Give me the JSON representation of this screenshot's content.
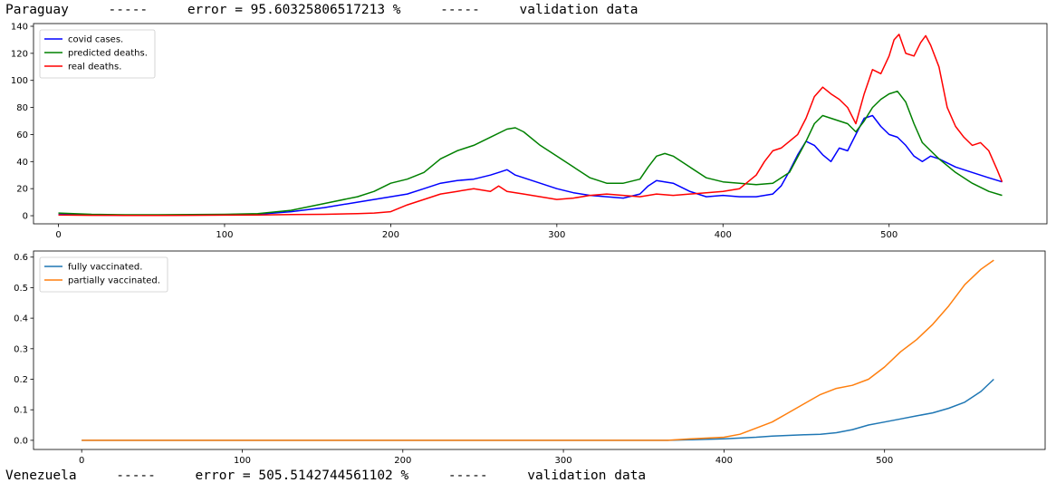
{
  "header": {
    "country": "Paraguay",
    "sep1": "-----",
    "error_text": "error = 95.60325806517213 %",
    "sep2": "-----",
    "dataset": "validation data"
  },
  "footer_header": {
    "country": "Venezuela",
    "sep1": "-----",
    "error_text": "error = 505.5142744561102 %",
    "sep2": "-----",
    "dataset": "validation data"
  },
  "colors": {
    "cases": "#0000ff",
    "predicted": "#008000",
    "real": "#ff0000",
    "fully": "#1f77b4",
    "partially": "#ff7f0e"
  },
  "chart_data": [
    {
      "type": "line",
      "title": "",
      "xlabel": "",
      "ylabel": "",
      "xlim": [
        -15,
        595
      ],
      "ylim": [
        -6,
        142
      ],
      "xticks": [
        0,
        100,
        200,
        300,
        400,
        500
      ],
      "yticks": [
        0,
        20,
        40,
        60,
        80,
        100,
        120,
        140
      ],
      "legend": "top-left",
      "grid": false,
      "series": [
        {
          "name": "covid cases.",
          "color": "#0000ff",
          "x": [
            0,
            20,
            40,
            60,
            80,
            100,
            120,
            140,
            160,
            180,
            190,
            200,
            210,
            220,
            230,
            240,
            250,
            260,
            265,
            270,
            275,
            280,
            290,
            300,
            310,
            320,
            330,
            340,
            350,
            355,
            360,
            365,
            370,
            380,
            390,
            400,
            410,
            420,
            430,
            435,
            440,
            445,
            450,
            455,
            460,
            465,
            470,
            475,
            480,
            485,
            490,
            495,
            500,
            505,
            510,
            515,
            520,
            525,
            530,
            540,
            550,
            560,
            568
          ],
          "y": [
            1,
            0.5,
            0.3,
            0.3,
            0.5,
            0.8,
            1,
            3,
            6,
            10,
            12,
            14,
            16,
            20,
            24,
            26,
            27,
            30,
            32,
            34,
            30,
            28,
            24,
            20,
            17,
            15,
            14,
            13,
            16,
            22,
            26,
            25,
            24,
            18,
            14,
            15,
            14,
            14,
            16,
            22,
            33,
            45,
            55,
            52,
            45,
            40,
            50,
            48,
            60,
            72,
            74,
            66,
            60,
            58,
            52,
            44,
            40,
            44,
            42,
            36,
            32,
            28,
            25
          ]
        },
        {
          "name": "predicted deaths.",
          "color": "#008000",
          "x": [
            0,
            20,
            40,
            60,
            80,
            100,
            120,
            140,
            160,
            180,
            190,
            200,
            210,
            220,
            230,
            240,
            250,
            260,
            270,
            275,
            280,
            290,
            300,
            310,
            320,
            330,
            340,
            350,
            355,
            360,
            365,
            370,
            380,
            390,
            400,
            410,
            420,
            430,
            440,
            450,
            455,
            460,
            465,
            470,
            475,
            480,
            485,
            490,
            495,
            500,
            505,
            510,
            515,
            520,
            525,
            530,
            540,
            550,
            560,
            568
          ],
          "y": [
            2,
            1,
            0.7,
            0.7,
            0.9,
            1,
            1.5,
            4,
            9,
            14,
            18,
            24,
            27,
            32,
            42,
            48,
            52,
            58,
            64,
            65,
            62,
            52,
            44,
            36,
            28,
            24,
            24,
            27,
            36,
            44,
            46,
            44,
            36,
            28,
            25,
            24,
            23,
            24,
            32,
            55,
            68,
            74,
            72,
            70,
            68,
            62,
            70,
            80,
            86,
            90,
            92,
            84,
            68,
            54,
            48,
            42,
            32,
            24,
            18,
            15
          ]
        },
        {
          "name": "real deaths.",
          "color": "#ff0000",
          "x": [
            0,
            20,
            40,
            60,
            80,
            100,
            120,
            140,
            160,
            180,
            190,
            200,
            210,
            220,
            230,
            240,
            250,
            260,
            265,
            270,
            280,
            290,
            300,
            310,
            320,
            330,
            340,
            350,
            360,
            370,
            380,
            390,
            400,
            410,
            420,
            425,
            430,
            435,
            440,
            445,
            450,
            455,
            460,
            465,
            470,
            475,
            480,
            485,
            490,
            495,
            500,
            503,
            506,
            510,
            515,
            519,
            522,
            525,
            530,
            535,
            540,
            545,
            550,
            555,
            560,
            565,
            568
          ],
          "y": [
            0.5,
            0.3,
            0.2,
            0.2,
            0.3,
            0.4,
            0.5,
            0.8,
            1,
            1.5,
            2,
            3,
            8,
            12,
            16,
            18,
            20,
            18,
            22,
            18,
            16,
            14,
            12,
            13,
            15,
            16,
            15,
            14,
            16,
            15,
            16,
            17,
            18,
            20,
            30,
            40,
            48,
            50,
            55,
            60,
            72,
            88,
            95,
            90,
            86,
            80,
            68,
            90,
            108,
            105,
            118,
            130,
            134,
            120,
            118,
            128,
            133,
            126,
            110,
            80,
            66,
            58,
            52,
            54,
            48,
            34,
            25
          ]
        }
      ]
    },
    {
      "type": "line",
      "title": "",
      "xlabel": "",
      "ylabel": "",
      "xlim": [
        -30,
        600
      ],
      "ylim": [
        -0.03,
        0.62
      ],
      "xticks": [
        0,
        100,
        200,
        300,
        400,
        500
      ],
      "yticks": [
        0.0,
        0.1,
        0.2,
        0.3,
        0.4,
        0.5,
        0.6
      ],
      "legend": "top-left",
      "grid": false,
      "series": [
        {
          "name": "fully vaccinated.",
          "color": "#1f77b4",
          "x": [
            0,
            100,
            200,
            300,
            365,
            380,
            400,
            420,
            430,
            440,
            450,
            460,
            470,
            480,
            490,
            500,
            510,
            520,
            530,
            540,
            550,
            560,
            568
          ],
          "y": [
            0,
            0,
            0,
            0,
            0,
            0.002,
            0.005,
            0.01,
            0.014,
            0.016,
            0.018,
            0.02,
            0.025,
            0.035,
            0.05,
            0.06,
            0.07,
            0.08,
            0.09,
            0.105,
            0.125,
            0.16,
            0.2
          ]
        },
        {
          "name": "partially vaccinated.",
          "color": "#ff7f0e",
          "x": [
            0,
            100,
            200,
            300,
            365,
            380,
            400,
            410,
            420,
            430,
            440,
            450,
            460,
            470,
            480,
            490,
            500,
            510,
            520,
            530,
            540,
            550,
            560,
            568
          ],
          "y": [
            0,
            0,
            0,
            0,
            0,
            0.005,
            0.01,
            0.02,
            0.04,
            0.06,
            0.09,
            0.12,
            0.15,
            0.17,
            0.18,
            0.2,
            0.24,
            0.29,
            0.33,
            0.38,
            0.44,
            0.51,
            0.56,
            0.59
          ]
        }
      ]
    }
  ]
}
